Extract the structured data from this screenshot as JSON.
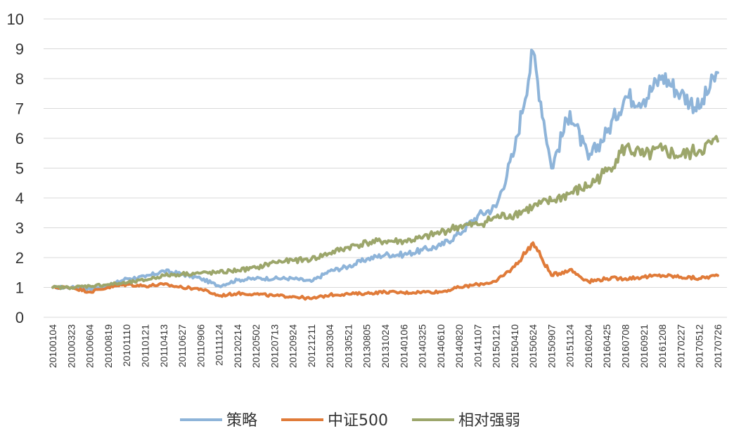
{
  "chart_data": {
    "type": "line",
    "title": "",
    "xlabel": "",
    "ylabel": "",
    "ylim": [
      0,
      10
    ],
    "yticks": [
      0,
      1,
      2,
      3,
      4,
      5,
      6,
      7,
      8,
      9,
      10
    ],
    "grid": true,
    "legend_position": "bottom",
    "x": [
      "20100104",
      "20100323",
      "20100604",
      "20100819",
      "20101110",
      "20110121",
      "20110413",
      "20110627",
      "20110906",
      "20111124",
      "20120214",
      "20120502",
      "20120713",
      "20120924",
      "20121211",
      "20130304",
      "20130521",
      "20130805",
      "20131024",
      "20140106",
      "20140325",
      "20140610",
      "20140820",
      "20141107",
      "20150121",
      "20150410",
      "20150624",
      "20150907",
      "20151124",
      "20160204",
      "20160425",
      "20160708",
      "20160921",
      "20161208",
      "20170227",
      "20170512",
      "20170726"
    ],
    "series": [
      {
        "name": "策略",
        "color": "#8eb4d9",
        "values": [
          1.0,
          1.0,
          0.95,
          1.05,
          1.3,
          1.35,
          1.55,
          1.45,
          1.3,
          1.05,
          1.25,
          1.3,
          1.3,
          1.3,
          1.2,
          1.55,
          1.7,
          1.95,
          2.1,
          2.1,
          2.25,
          2.4,
          2.8,
          3.4,
          3.7,
          5.6,
          8.9,
          5.0,
          6.9,
          5.3,
          6.2,
          7.4,
          7.3,
          8.1,
          7.5,
          7.0,
          8.2
        ]
      },
      {
        "name": "中证500",
        "color": "#e07b39",
        "values": [
          1.0,
          1.0,
          0.85,
          1.0,
          1.1,
          1.05,
          1.1,
          1.0,
          0.95,
          0.72,
          0.8,
          0.78,
          0.72,
          0.7,
          0.62,
          0.75,
          0.78,
          0.8,
          0.85,
          0.82,
          0.85,
          0.85,
          1.0,
          1.1,
          1.2,
          1.7,
          2.5,
          1.4,
          1.6,
          1.2,
          1.3,
          1.3,
          1.35,
          1.4,
          1.35,
          1.3,
          1.4
        ]
      },
      {
        "name": "相对强弱",
        "color": "#9ca66b",
        "values": [
          1.0,
          1.0,
          1.05,
          1.1,
          1.15,
          1.25,
          1.4,
          1.45,
          1.48,
          1.5,
          1.58,
          1.65,
          1.85,
          1.9,
          1.95,
          2.15,
          2.35,
          2.5,
          2.55,
          2.55,
          2.65,
          2.85,
          3.05,
          3.1,
          3.35,
          3.45,
          3.7,
          3.9,
          4.15,
          4.4,
          4.9,
          5.7,
          5.4,
          5.6,
          5.4,
          5.6,
          5.9
        ]
      }
    ]
  }
}
